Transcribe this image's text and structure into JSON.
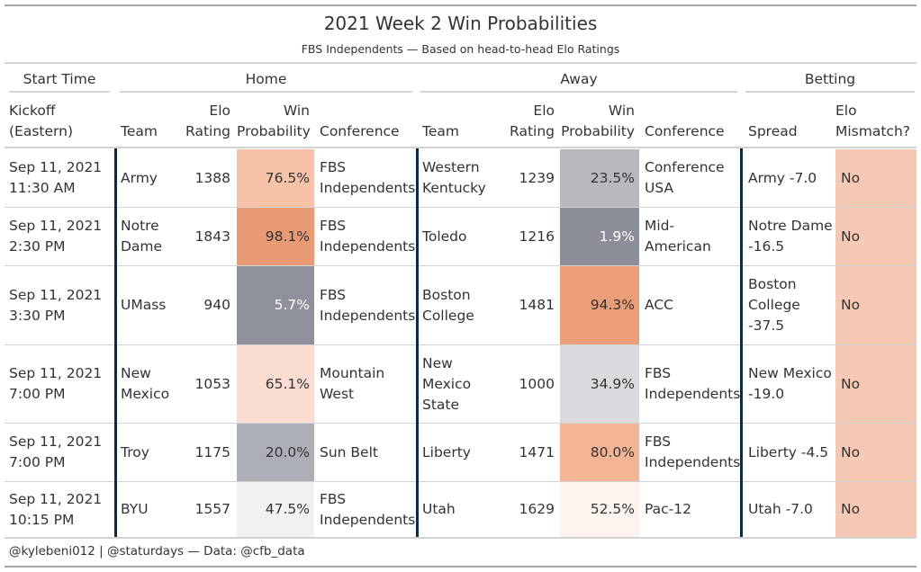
{
  "title": "2021 Week 2 Win Probabilities",
  "subtitle": "FBS Independents — Based on head-to-head Elo Ratings",
  "spanners": {
    "start_time": "Start Time",
    "home": "Home",
    "away": "Away",
    "betting": "Betting"
  },
  "columns": {
    "kickoff": "Kickoff\n(Eastern)",
    "home_team": "Team",
    "home_elo": "Elo\nRating",
    "home_prob": "Win\nProbability",
    "home_conf": "Conference",
    "away_team": "Team",
    "away_elo": "Elo\nRating",
    "away_prob": "Win\nProbability",
    "away_conf": "Conference",
    "spread": "Spread",
    "mismatch": "Elo\nMismatch?"
  },
  "colors": {
    "mismatch_no": "#f6c9b4",
    "divider": "#0f2846"
  },
  "rows": [
    {
      "kickoff": "Sep 11, 2021\n11:30 AM",
      "home_team": "Army",
      "home_elo": "1388",
      "home_prob": "76.5%",
      "home_color": "#f6c2a8",
      "home_text": "#333333",
      "home_conf": "FBS\nIndependents",
      "away_team": "Western\nKentucky",
      "away_elo": "1239",
      "away_prob": "23.5%",
      "away_color": "#b8b9be",
      "away_text": "#333333",
      "away_conf": "Conference\nUSA",
      "spread": "Army -7.0",
      "mismatch": "No"
    },
    {
      "kickoff": "Sep 11, 2021\n2:30 PM",
      "home_team": "Notre\nDame",
      "home_elo": "1843",
      "home_prob": "98.1%",
      "home_color": "#e89b73",
      "home_text": "#333333",
      "home_conf": "FBS\nIndependents",
      "away_team": "Toledo",
      "away_elo": "1216",
      "away_prob": "1.9%",
      "away_color": "#8c8f99",
      "away_text": "#ffffff",
      "away_conf": "Mid-\nAmerican",
      "spread": "Notre Dame\n-16.5",
      "mismatch": "No"
    },
    {
      "kickoff": "Sep 11, 2021\n3:30 PM",
      "home_team": "UMass",
      "home_elo": "940",
      "home_prob": "5.7%",
      "home_color": "#8e919b",
      "home_text": "#ffffff",
      "home_conf": "FBS\nIndependents",
      "away_team": "Boston\nCollege",
      "away_elo": "1481",
      "away_prob": "94.3%",
      "away_color": "#eb9e78",
      "away_text": "#333333",
      "away_conf": "ACC",
      "spread": "Boston\nCollege\n-37.5",
      "mismatch": "No"
    },
    {
      "kickoff": "Sep 11, 2021\n7:00 PM",
      "home_team": "New\nMexico",
      "home_elo": "1053",
      "home_prob": "65.1%",
      "home_color": "#fbdcd0",
      "home_text": "#333333",
      "home_conf": "Mountain\nWest",
      "away_team": "New\nMexico\nState",
      "away_elo": "1000",
      "away_prob": "34.9%",
      "away_color": "#dadadf",
      "away_text": "#333333",
      "away_conf": "FBS\nIndependents",
      "spread": "New Mexico\n-19.0",
      "mismatch": "No"
    },
    {
      "kickoff": "Sep 11, 2021\n7:00 PM",
      "home_team": "Troy",
      "home_elo": "1175",
      "home_prob": "20.0%",
      "home_color": "#adafb6",
      "home_text": "#333333",
      "home_conf": "Sun Belt",
      "away_team": "Liberty",
      "away_elo": "1471",
      "away_prob": "80.0%",
      "away_color": "#f4b595",
      "away_text": "#333333",
      "away_conf": "FBS\nIndependents",
      "spread": "Liberty -4.5",
      "mismatch": "No"
    },
    {
      "kickoff": "Sep 11, 2021\n10:15 PM",
      "home_team": "BYU",
      "home_elo": "1557",
      "home_prob": "47.5%",
      "home_color": "#f1f1f3",
      "home_text": "#333333",
      "home_conf": "FBS\nIndependents",
      "away_team": "Utah",
      "away_elo": "1629",
      "away_prob": "52.5%",
      "away_color": "#fdf3ef",
      "away_text": "#333333",
      "away_conf": "Pac-12",
      "spread": "Utah -7.0",
      "mismatch": "No"
    }
  ],
  "footer": "@kylebeni012 | @staturdays — Data: @cfb_data"
}
